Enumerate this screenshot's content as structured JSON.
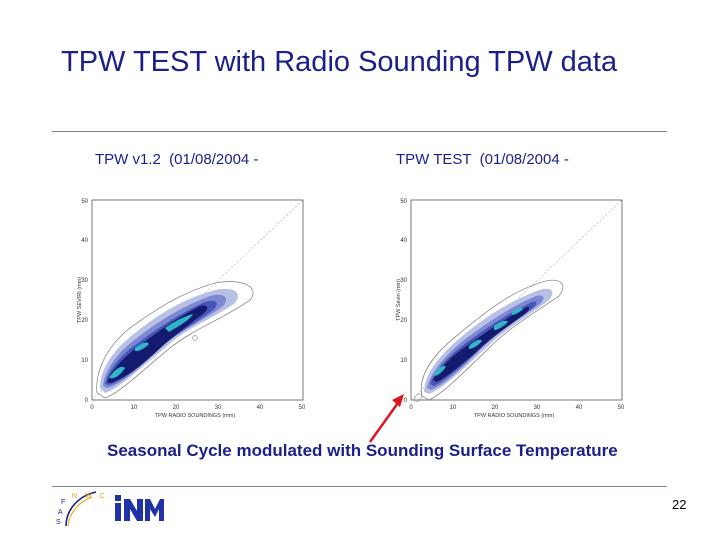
{
  "slide": {
    "title": "TPW TEST with Radio Sounding TPW data",
    "caption": "Seasonal Cycle modulated with Sounding Surface Temperature",
    "page_number": "22"
  },
  "plots": [
    {
      "title": "TPW v1.2  (01/08/2004 -",
      "xlabel": "TPW RADIO SOUNDINGS (mm)",
      "ylabel": "TPW SEVIRI (mm)",
      "x_ticks": [
        "0",
        "10",
        "20",
        "30",
        "40",
        "50"
      ],
      "y_ticks": [
        "0",
        "10",
        "20",
        "30",
        "40",
        "50"
      ]
    },
    {
      "title": "TPW TEST  (01/08/2004 -",
      "xlabel": "TPW RADIO SOUNDINGS (mm)",
      "ylabel": "TPW Seviri (mm)",
      "x_ticks": [
        "0",
        "10",
        "20",
        "30",
        "40",
        "50"
      ],
      "y_ticks": [
        "0",
        "10",
        "20",
        "30",
        "40",
        "50"
      ]
    }
  ],
  "logos": {
    "saf": "S A F",
    "nwc": "N W C",
    "inm": "INM"
  },
  "colors": {
    "title": "#1a1f8a",
    "arrow": "#e0141c",
    "density_dark": "#141a6e",
    "density_mid": "#4655b8",
    "density_light": "#b9c0e6",
    "density_core": "#2fb7c9"
  }
}
